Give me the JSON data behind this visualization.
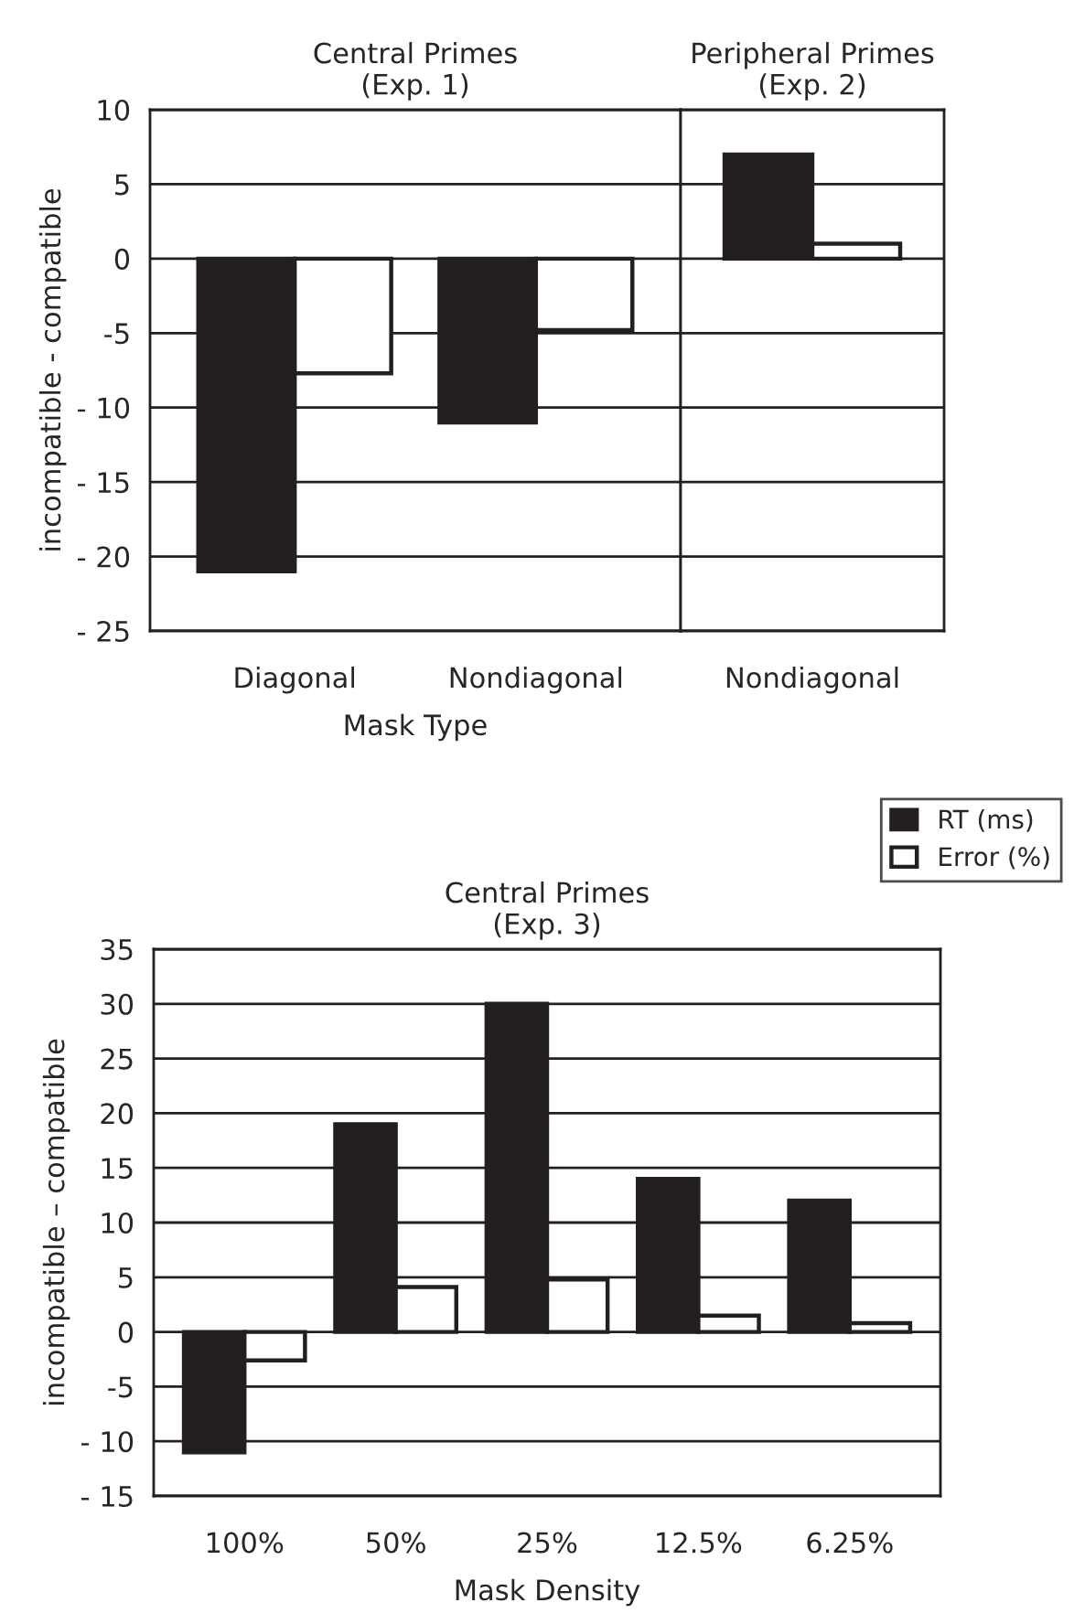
{
  "chart_data": [
    {
      "type": "bar",
      "title": "Central Primes\n(Exp. 1)",
      "xlabel": "Mask Type",
      "ylabel": "incompatible - compatible",
      "categories": [
        "Diagonal",
        "Nondiagonal"
      ],
      "series": [
        {
          "color": "#231f20",
          "values": [
            -21,
            -11
          ]
        },
        {
          "color": "#ffffff",
          "values": [
            -7.7,
            -4.8
          ]
        }
      ],
      "ylim": [
        -25,
        10
      ],
      "yticks": [
        {
          "value": -25,
          "label": "- 25"
        },
        {
          "value": -20,
          "label": "- 20"
        },
        {
          "value": -15,
          "label": "- 15"
        },
        {
          "value": -10,
          "label": "- 10"
        },
        {
          "value": -5,
          "label": "-5"
        },
        0,
        5,
        10
      ],
      "grid": "y"
    },
    {
      "type": "bar",
      "title": "Peripheral Primes\n(Exp. 2)",
      "categories": [
        "Nondiagonal"
      ],
      "series": [
        {
          "color": "#231f20",
          "values": [
            7
          ]
        },
        {
          "color": "#ffffff",
          "values": [
            1
          ]
        }
      ],
      "ylim": [
        -25,
        10
      ],
      "grid": "y",
      "tick_labels": "x"
    },
    {
      "type": "bar",
      "title": "Central Primes\n(Exp. 3)",
      "xlabel": "Mask Density",
      "ylabel": "incompatible – compatible",
      "categories": [
        "100%",
        "50%",
        "25%",
        "12.5%",
        "6.25%"
      ],
      "series": [
        {
          "name": "RT (ms)",
          "color": "#231f20",
          "values": [
            -11,
            19,
            30,
            14,
            12
          ]
        },
        {
          "name": "Error (%)",
          "color": "#ffffff",
          "values": [
            -2.6,
            4.1,
            4.8,
            1.5,
            0.8
          ]
        }
      ],
      "ylim": [
        -15,
        35
      ],
      "yticks": [
        {
          "value": -15,
          "label": "- 15"
        },
        {
          "value": -10,
          "label": "- 10"
        },
        {
          "value": -5,
          "label": "-5"
        },
        0,
        5,
        10,
        15,
        20,
        25,
        30,
        35
      ],
      "grid": "y",
      "legend": "top right"
    }
  ]
}
